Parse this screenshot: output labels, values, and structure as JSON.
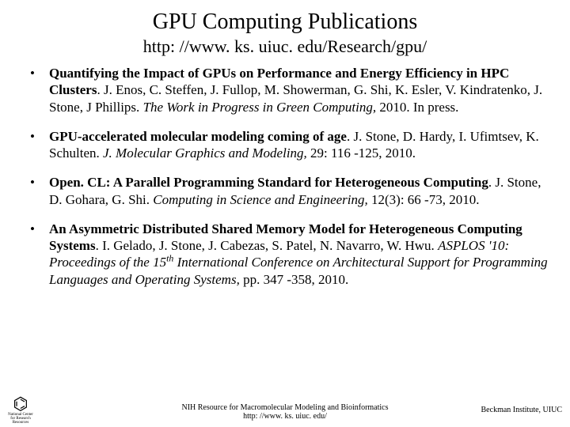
{
  "title": "GPU Computing Publications",
  "subtitle": "http: //www. ks. uiuc. edu/Research/gpu/",
  "publications": [
    {
      "title_bold": "Quantifying the Impact of GPUs on Performance and Energy Efficiency in HPC Clusters",
      "authors": ". J. Enos, C. Steffen, J. Fullop, M. Showerman, G. Shi, K. Esler, V. Kindratenko, J. Stone, J Phillips.  ",
      "venue_italic": "The Work in Progress in Green Computing,",
      "tail": " 2010. In press."
    },
    {
      "title_bold": "GPU-accelerated molecular modeling coming of age",
      "authors": ".  J. Stone, D. Hardy, I. Ufimtsev, K. Schulten.  ",
      "venue_italic": "J. Molecular Graphics and Modeling,",
      "tail": " 29: 116 -125, 2010."
    },
    {
      "title_bold": "Open. CL: A Parallel Programming Standard for Heterogeneous Computing",
      "authors": ". J. Stone, D. Gohara, G. Shi.  ",
      "venue_italic": "Computing in Science and Engineering,",
      "tail": " 12(3): 66 -73, 2010."
    },
    {
      "title_bold": "An Asymmetric Distributed Shared Memory Model for Heterogeneous Computing Systems",
      "authors": ".  I. Gelado, J. Stone, J. Cabezas, S. Patel, N. Navarro, W. Hwu.  ",
      "venue_italic_pre": "ASPLOS '10: Proceedings of the 15",
      "venue_italic_sup": "th",
      "venue_italic_post": " International Conference on Architectural Support for Programming Languages and Operating Systems,",
      "tail": " pp. 347 -358, 2010."
    }
  ],
  "footer": {
    "center_line1": "NIH Resource for Macromolecular Modeling and Bioinformatics",
    "center_line2": "http: //www. ks. uiuc. edu/",
    "right": "Beckman Institute, UIUC",
    "logo_label": "National Center for Research Resources"
  },
  "colors": {
    "background": "#ffffff",
    "text": "#000000"
  },
  "typography": {
    "title_fontsize": 28,
    "subtitle_fontsize": 22,
    "body_fontsize": 17,
    "footer_fontsize": 10,
    "font_family": "Times New Roman"
  }
}
